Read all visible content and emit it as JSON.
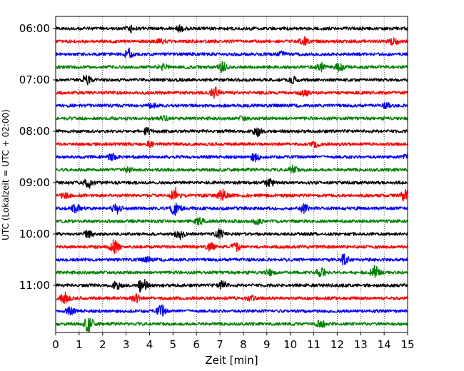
{
  "chart_data": {
    "type": "line",
    "title": "",
    "xlabel": "Zeit  [min]",
    "ylabel": "UTC (Lokalzeit = UTC + 02:00)",
    "xlim": [
      0,
      15
    ],
    "x_ticks": [
      0,
      1,
      2,
      3,
      4,
      5,
      6,
      7,
      8,
      9,
      10,
      11,
      12,
      13,
      14,
      15
    ],
    "y_tick_labels": [
      "06:00",
      "07:00",
      "08:00",
      "09:00",
      "10:00",
      "11:00"
    ],
    "grid": "x-dotted",
    "trace_minutes": 15,
    "colors": [
      "#000000",
      "#ff0000",
      "#0000ff",
      "#008000"
    ],
    "series": [
      {
        "start": "06:00",
        "color": "#000000",
        "events": [
          {
            "t": 3.1,
            "a": 0.5
          },
          {
            "t": 5.2,
            "a": 0.35
          }
        ]
      },
      {
        "start": "06:15",
        "color": "#ff0000",
        "events": [
          {
            "t": 10.5,
            "a": 0.6
          },
          {
            "t": 14.3,
            "a": 0.6
          },
          {
            "t": 4.4,
            "a": 0.3
          }
        ]
      },
      {
        "start": "06:30",
        "color": "#0000ff",
        "events": [
          {
            "t": 3.0,
            "a": 0.8
          },
          {
            "t": 9.5,
            "a": 0.35
          }
        ]
      },
      {
        "start": "06:45",
        "color": "#008000",
        "events": [
          {
            "t": 4.5,
            "a": 0.4
          },
          {
            "t": 7.0,
            "a": 0.7
          },
          {
            "t": 11.2,
            "a": 0.6
          },
          {
            "t": 12.0,
            "a": 0.5
          }
        ]
      },
      {
        "start": "07:00",
        "color": "#000000",
        "events": [
          {
            "t": 1.2,
            "a": 0.7
          },
          {
            "t": 10.0,
            "a": 0.4
          }
        ]
      },
      {
        "start": "07:15",
        "color": "#ff0000",
        "events": [
          {
            "t": 6.7,
            "a": 0.8
          },
          {
            "t": 10.5,
            "a": 0.4
          }
        ]
      },
      {
        "start": "07:30",
        "color": "#0000ff",
        "events": [
          {
            "t": 4.0,
            "a": 0.3
          },
          {
            "t": 14.0,
            "a": 0.3
          }
        ]
      },
      {
        "start": "07:45",
        "color": "#008000",
        "events": [
          {
            "t": 4.5,
            "a": 0.35
          },
          {
            "t": 7.9,
            "a": 0.3
          }
        ]
      },
      {
        "start": "08:00",
        "color": "#000000",
        "events": [
          {
            "t": 3.8,
            "a": 0.4
          },
          {
            "t": 8.5,
            "a": 0.6
          }
        ]
      },
      {
        "start": "08:15",
        "color": "#ff0000",
        "events": [
          {
            "t": 3.9,
            "a": 0.3
          },
          {
            "t": 11.0,
            "a": 0.3
          }
        ]
      },
      {
        "start": "08:30",
        "color": "#0000ff",
        "events": [
          {
            "t": 2.3,
            "a": 0.4
          },
          {
            "t": 8.4,
            "a": 0.6
          },
          {
            "t": 14.9,
            "a": 0.6
          }
        ]
      },
      {
        "start": "08:45",
        "color": "#008000",
        "events": [
          {
            "t": 3.0,
            "a": 0.3
          },
          {
            "t": 10.0,
            "a": 0.6
          }
        ]
      },
      {
        "start": "09:00",
        "color": "#000000",
        "events": [
          {
            "t": 1.3,
            "a": 0.8
          },
          {
            "t": 9.0,
            "a": 0.6
          }
        ]
      },
      {
        "start": "09:15",
        "color": "#ff0000",
        "events": [
          {
            "t": 0.3,
            "a": 0.5
          },
          {
            "t": 5.0,
            "a": 1.2
          },
          {
            "t": 7.0,
            "a": 0.8
          },
          {
            "t": 14.8,
            "a": 0.8
          }
        ]
      },
      {
        "start": "09:30",
        "color": "#0000ff",
        "events": [
          {
            "t": 0.8,
            "a": 0.8
          },
          {
            "t": 2.5,
            "a": 0.7
          },
          {
            "t": 5.0,
            "a": 1.4
          },
          {
            "t": 10.5,
            "a": 0.6
          }
        ]
      },
      {
        "start": "09:45",
        "color": "#008000",
        "events": [
          {
            "t": 6.0,
            "a": 0.5
          },
          {
            "t": 8.5,
            "a": 0.4
          }
        ]
      },
      {
        "start": "10:00",
        "color": "#000000",
        "events": [
          {
            "t": 1.3,
            "a": 0.5
          },
          {
            "t": 5.2,
            "a": 0.7
          },
          {
            "t": 6.9,
            "a": 0.6
          }
        ]
      },
      {
        "start": "10:15",
        "color": "#ff0000",
        "events": [
          {
            "t": 2.4,
            "a": 1.0
          },
          {
            "t": 6.5,
            "a": 0.5
          },
          {
            "t": 7.6,
            "a": 0.5
          }
        ]
      },
      {
        "start": "10:30",
        "color": "#0000ff",
        "events": [
          {
            "t": 3.8,
            "a": 0.3
          },
          {
            "t": 12.2,
            "a": 0.7
          }
        ]
      },
      {
        "start": "10:45",
        "color": "#008000",
        "events": [
          {
            "t": 9.0,
            "a": 0.4
          },
          {
            "t": 11.2,
            "a": 0.7
          },
          {
            "t": 13.5,
            "a": 0.9
          }
        ]
      },
      {
        "start": "11:00",
        "color": "#000000",
        "events": [
          {
            "t": 2.5,
            "a": 0.5
          },
          {
            "t": 3.6,
            "a": 1.1
          },
          {
            "t": 7.0,
            "a": 0.6
          }
        ]
      },
      {
        "start": "11:15",
        "color": "#ff0000",
        "events": [
          {
            "t": 0.3,
            "a": 1.0
          },
          {
            "t": 3.3,
            "a": 0.6
          },
          {
            "t": 8.2,
            "a": 0.3
          }
        ]
      },
      {
        "start": "11:30",
        "color": "#0000ff",
        "events": [
          {
            "t": 0.5,
            "a": 0.5
          },
          {
            "t": 4.4,
            "a": 0.8
          }
        ]
      },
      {
        "start": "11:45",
        "color": "#008000",
        "events": [
          {
            "t": 1.3,
            "a": 1.1
          },
          {
            "t": 11.2,
            "a": 0.5
          }
        ]
      }
    ]
  }
}
